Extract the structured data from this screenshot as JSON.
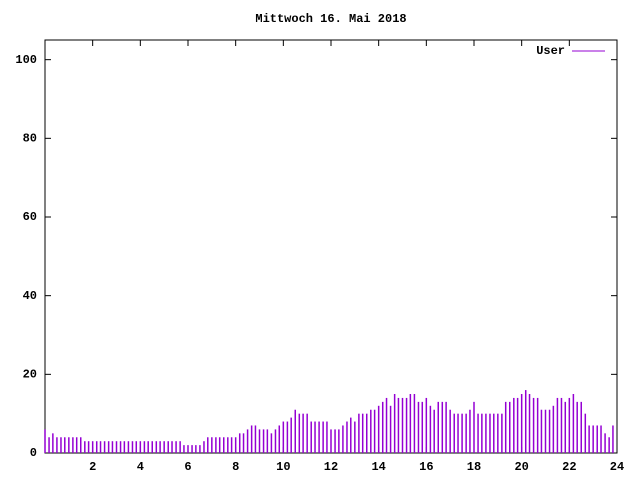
{
  "chart_data": {
    "type": "impulse",
    "title": "Mittwoch 16. Mai 2018",
    "x": [
      0,
      0.17,
      0.33,
      0.5,
      0.67,
      0.83,
      1,
      1.17,
      1.33,
      1.5,
      1.67,
      1.83,
      2,
      2.17,
      2.33,
      2.5,
      2.67,
      2.83,
      3,
      3.17,
      3.33,
      3.5,
      3.67,
      3.83,
      4,
      4.17,
      4.33,
      4.5,
      4.67,
      4.83,
      5,
      5.17,
      5.33,
      5.5,
      5.67,
      5.83,
      6,
      6.17,
      6.33,
      6.5,
      6.67,
      6.83,
      7,
      7.17,
      7.33,
      7.5,
      7.67,
      7.83,
      8,
      8.17,
      8.33,
      8.5,
      8.67,
      8.83,
      9,
      9.17,
      9.33,
      9.5,
      9.67,
      9.83,
      10,
      10.17,
      10.33,
      10.5,
      10.67,
      10.83,
      11,
      11.17,
      11.33,
      11.5,
      11.67,
      11.83,
      12,
      12.17,
      12.33,
      12.5,
      12.67,
      12.83,
      13,
      13.17,
      13.33,
      13.5,
      13.67,
      13.83,
      14,
      14.17,
      14.33,
      14.5,
      14.67,
      14.83,
      15,
      15.17,
      15.33,
      15.5,
      15.67,
      15.83,
      16,
      16.17,
      16.33,
      16.5,
      16.67,
      16.83,
      17,
      17.17,
      17.33,
      17.5,
      17.67,
      17.83,
      18,
      18.17,
      18.33,
      18.5,
      18.67,
      18.83,
      19,
      19.17,
      19.33,
      19.5,
      19.67,
      19.83,
      20,
      20.17,
      20.33,
      20.5,
      20.67,
      20.83,
      21,
      21.17,
      21.33,
      21.5,
      21.67,
      21.83,
      22,
      22.17,
      22.33,
      22.5,
      22.67,
      22.83,
      23,
      23.17,
      23.33,
      23.5,
      23.67,
      23.83
    ],
    "series": [
      {
        "name": "User",
        "color": "#9400d3",
        "values": [
          6,
          4,
          5,
          4,
          4,
          4,
          4,
          4,
          4,
          4,
          3,
          3,
          3,
          3,
          3,
          3,
          3,
          3,
          3,
          3,
          3,
          3,
          3,
          3,
          3,
          3,
          3,
          3,
          3,
          3,
          3,
          3,
          3,
          3,
          3,
          2,
          2,
          2,
          2,
          2,
          3,
          4,
          4,
          4,
          4,
          4,
          4,
          4,
          4,
          5,
          5,
          6,
          7,
          7,
          6,
          6,
          6,
          5,
          6,
          7,
          8,
          8,
          9,
          11,
          10,
          10,
          10,
          8,
          8,
          8,
          8,
          8,
          6,
          6,
          6,
          7,
          8,
          9,
          8,
          10,
          10,
          10,
          11,
          11,
          12,
          13,
          14,
          12,
          15,
          14,
          14,
          14,
          15,
          15,
          13,
          13,
          14,
          12,
          11,
          13,
          13,
          13,
          11,
          10,
          10,
          10,
          10,
          11,
          13,
          10,
          10,
          10,
          10,
          10,
          10,
          10,
          13,
          13,
          14,
          14,
          15,
          16,
          15,
          14,
          14,
          11,
          11,
          11,
          12,
          14,
          14,
          13,
          14,
          15,
          13,
          13,
          10,
          7,
          7,
          7,
          7,
          5,
          4,
          7
        ]
      }
    ],
    "xlim": [
      0,
      24
    ],
    "xticks": [
      2,
      4,
      6,
      8,
      10,
      12,
      14,
      16,
      18,
      20,
      22,
      24
    ],
    "ylim": [
      0,
      105
    ],
    "yticks": [
      0,
      20,
      40,
      60,
      80,
      100
    ],
    "legend": "top-right"
  }
}
